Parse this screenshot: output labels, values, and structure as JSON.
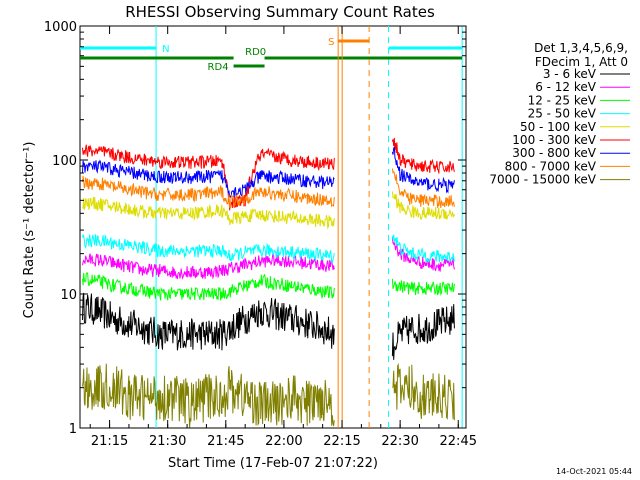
{
  "chart_data": {
    "type": "line",
    "title": "RHESSI Observing Summary Count Rates",
    "xlabel": "Start Time (17-Feb-07 21:07:22)",
    "ylabel": "Count Rate (s⁻¹ detector⁻¹)",
    "yscale": "log",
    "ylim": [
      1,
      1000
    ],
    "xlim": [
      "21:07:22",
      "22:47:00"
    ],
    "x_ticks": [
      "21:15",
      "21:30",
      "21:45",
      "22:00",
      "22:15",
      "22:30",
      "22:45"
    ],
    "y_ticks": [
      "1",
      "10",
      "100",
      "1000"
    ],
    "legend_header": [
      "Det 1,3,4,5,6,9,",
      "FDecim 1, Att 0"
    ],
    "legend_position": "right",
    "x": [
      "21:08",
      "21:12",
      "21:16",
      "21:20",
      "21:24",
      "21:28",
      "21:32",
      "21:36",
      "21:40",
      "21:44",
      "21:46",
      "21:50",
      "21:54",
      "21:58",
      "22:02",
      "22:06",
      "22:10",
      "22:13",
      "22:28",
      "22:30",
      "22:33",
      "22:36",
      "22:40",
      "22:44"
    ],
    "series": [
      {
        "name": "3 - 6 keV",
        "color": "#000000",
        "values": [
          8,
          7.5,
          6.5,
          6,
          5.5,
          5,
          5,
          5,
          5,
          5,
          5.5,
          6.5,
          7.5,
          7,
          6.5,
          6,
          5.5,
          5,
          4,
          5,
          5.5,
          5.5,
          6,
          6.5
        ]
      },
      {
        "name": "6 - 12 keV",
        "color": "#ff00ff",
        "values": [
          18,
          18,
          17,
          16,
          15,
          15,
          14.5,
          14.5,
          14.5,
          15,
          15.5,
          16.5,
          17.5,
          18,
          17.5,
          17,
          16.5,
          16,
          25,
          20,
          18,
          17,
          16.5,
          16.5
        ]
      },
      {
        "name": "12 - 25 keV",
        "color": "#00ff00",
        "values": [
          13,
          12.5,
          11.5,
          11,
          10.5,
          10,
          10,
          10,
          10,
          10,
          10.5,
          11.5,
          12.5,
          12,
          11.5,
          11,
          10.5,
          10,
          12,
          11.5,
          11,
          11,
          11,
          11
        ]
      },
      {
        "name": "25 - 50 keV",
        "color": "#00ffff",
        "values": [
          25,
          25,
          24,
          23,
          22,
          21,
          21,
          21,
          21,
          21,
          19,
          20.5,
          21,
          21,
          20.5,
          20,
          19.5,
          19,
          28,
          22,
          20,
          19.5,
          19,
          19
        ]
      },
      {
        "name": "50 - 100 keV",
        "color": "#dddd00",
        "values": [
          48,
          47,
          45,
          43,
          41,
          40,
          40,
          40,
          41,
          42,
          36,
          38,
          39,
          38,
          37,
          36,
          35,
          34,
          56,
          44,
          41,
          40,
          40,
          40
        ]
      },
      {
        "name": "100 - 300 keV",
        "color": "#ff0000",
        "values": [
          118,
          116,
          110,
          105,
          100,
          97,
          96,
          96,
          97,
          98,
          47,
          50,
          110,
          105,
          100,
          97,
          95,
          93,
          150,
          100,
          92,
          90,
          88,
          88
        ]
      },
      {
        "name": "300 - 800 keV",
        "color": "#0000ff",
        "values": [
          90,
          89,
          85,
          81,
          77,
          75,
          74,
          74,
          75,
          76,
          58,
          60,
          76,
          74,
          72,
          70,
          68,
          67,
          125,
          78,
          70,
          67,
          65,
          64
        ]
      },
      {
        "name": "800 - 7000 keV",
        "color": "#ff8000",
        "values": [
          68,
          67,
          63,
          60,
          57,
          55,
          55,
          55,
          56,
          57,
          49,
          52,
          58,
          56,
          54,
          52,
          51,
          50,
          90,
          56,
          51,
          50,
          49,
          49
        ]
      },
      {
        "name": "7000 - 15000 keV",
        "color": "#808000",
        "values": [
          2,
          2,
          2,
          1.7,
          1.7,
          1.7,
          1.7,
          1.5,
          1.7,
          1.7,
          2,
          1.7,
          1.5,
          1.5,
          1.7,
          1.5,
          1.7,
          1.5,
          2,
          2,
          2,
          1.7,
          1.7,
          1.7
        ]
      }
    ],
    "annotations": [
      {
        "text": "N",
        "type": "night",
        "color": "#00ffff",
        "spans": [
          [
            "21:07:22",
            "21:27"
          ],
          [
            "22:27",
            "22:46"
          ]
        ]
      },
      {
        "text": "RD0",
        "type": "reduced data",
        "color": "#008000",
        "spans": [
          [
            "21:07:22",
            "21:47"
          ],
          [
            "21:55",
            "22:46"
          ]
        ]
      },
      {
        "text": "RD4",
        "type": "reduced data",
        "color": "#008000",
        "spans": [
          [
            "21:47",
            "21:55"
          ]
        ]
      },
      {
        "text": "S",
        "type": "SAA",
        "color": "#ff8000",
        "spans": [
          [
            "22:14",
            "22:22"
          ]
        ]
      }
    ],
    "grid": false
  },
  "footer": {
    "timestamp": "14-Oct-2021 05:44"
  }
}
